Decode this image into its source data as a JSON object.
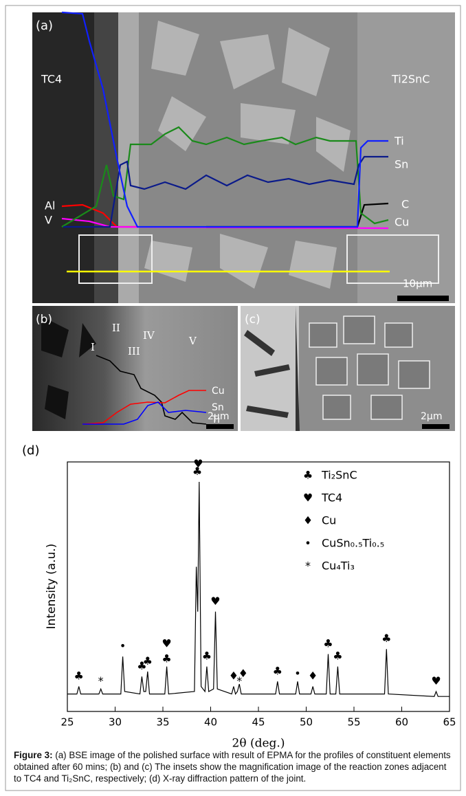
{
  "panels": {
    "a": {
      "label": "(a)",
      "left_zone": "TC4",
      "right_zone": "Ti2SnC",
      "elements": [
        "Ti",
        "Sn",
        "C",
        "Cu",
        "Al",
        "V"
      ],
      "scale": "10μm"
    },
    "b": {
      "label": "(b)",
      "zones": [
        "I",
        "II",
        "III",
        "IV",
        "V"
      ],
      "elements": [
        "Cu",
        "Sn",
        "Ti"
      ],
      "scale": "2μm"
    },
    "c": {
      "label": "(c)",
      "scale": "2μm"
    }
  },
  "chart_data": {
    "type": "line",
    "label": "(d)",
    "x_label": "2θ (deg.)",
    "y_label": "Intensity (a.u.)",
    "color": "#000000",
    "x": [
      25,
      26.0,
      26.2,
      26.4,
      28.3,
      28.5,
      28.7,
      30.6,
      30.8,
      31.0,
      32.6,
      32.8,
      33.0,
      33.2,
      33.4,
      33.6,
      35.2,
      35.4,
      35.6,
      38.3,
      38.5,
      38.65,
      38.8,
      39.0,
      39.4,
      39.6,
      39.8,
      40.3,
      40.5,
      40.7,
      42.2,
      42.4,
      42.6,
      42.8,
      43.0,
      43.2,
      46.8,
      47.0,
      47.2,
      48.9,
      49.1,
      49.3,
      50.5,
      50.7,
      50.9,
      52.1,
      52.3,
      52.5,
      53.1,
      53.3,
      53.5,
      58.2,
      58.4,
      58.6,
      63.4,
      63.6,
      63.8,
      65
    ],
    "y": [
      7,
      7,
      10,
      7,
      7,
      9,
      7,
      7,
      22,
      8,
      7,
      14,
      8,
      8,
      16,
      7,
      7,
      18,
      7,
      8,
      58,
      40,
      92,
      10,
      8,
      18,
      8,
      9,
      40,
      9,
      7,
      10,
      7,
      8,
      11,
      7,
      7,
      12,
      7,
      7,
      12,
      7,
      7,
      10,
      7,
      7,
      23,
      7,
      7,
      18,
      7,
      7,
      25,
      7,
      6,
      8,
      6,
      6
    ],
    "xlim": [
      25,
      65
    ],
    "xticks": [
      25,
      30,
      35,
      40,
      45,
      50,
      55,
      60,
      65
    ],
    "ylim": [
      0,
      100
    ],
    "peak_labels": [
      {
        "x": 26.2,
        "y": 14,
        "text": "♣"
      },
      {
        "x": 28.5,
        "y": 12,
        "text": "*"
      },
      {
        "x": 30.8,
        "y": 26,
        "text": "•"
      },
      {
        "x": 32.8,
        "y": 18,
        "text": "♣"
      },
      {
        "x": 33.4,
        "y": 20,
        "text": "♣"
      },
      {
        "x": 35.4,
        "y": 21,
        "text": "♣"
      },
      {
        "x": 35.4,
        "y": 27,
        "text": "♥"
      },
      {
        "x": 38.6,
        "y": 96,
        "text": "♣"
      },
      {
        "x": 38.7,
        "y": 99,
        "text": "♥"
      },
      {
        "x": 39.6,
        "y": 22,
        "text": "♣"
      },
      {
        "x": 40.5,
        "y": 44,
        "text": "♥"
      },
      {
        "x": 42.4,
        "y": 14,
        "text": "♦"
      },
      {
        "x": 43.0,
        "y": 12,
        "text": "*"
      },
      {
        "x": 43.4,
        "y": 15,
        "text": "♦"
      },
      {
        "x": 47.0,
        "y": 16,
        "text": "♣"
      },
      {
        "x": 49.1,
        "y": 15,
        "text": "•"
      },
      {
        "x": 50.7,
        "y": 14,
        "text": "♦"
      },
      {
        "x": 52.3,
        "y": 27,
        "text": "♣"
      },
      {
        "x": 53.3,
        "y": 22,
        "text": "♣"
      },
      {
        "x": 58.4,
        "y": 29,
        "text": "♣"
      },
      {
        "x": 63.6,
        "y": 12,
        "text": "♥"
      }
    ],
    "legend": [
      {
        "symbol": "♣",
        "name": "Ti₂SnC"
      },
      {
        "symbol": "♥",
        "name": "TC4"
      },
      {
        "symbol": "♦",
        "name": "Cu"
      },
      {
        "symbol": "•",
        "name": "CuSn₀.₅Ti₀.₅"
      },
      {
        "symbol": "*",
        "name": "Cu₄Ti₃"
      }
    ]
  },
  "caption": {
    "label": "Figure 3:",
    "text": " (a) BSE image of the polished surface with result of EPMA for the profiles of constituent elements obtained after 60 mins; (b) and (c) The insets show the magnification image of the reaction zones adjacent to TC4 and Ti₂SnC, respectively; (d) X-ray diffraction pattern of the joint."
  }
}
